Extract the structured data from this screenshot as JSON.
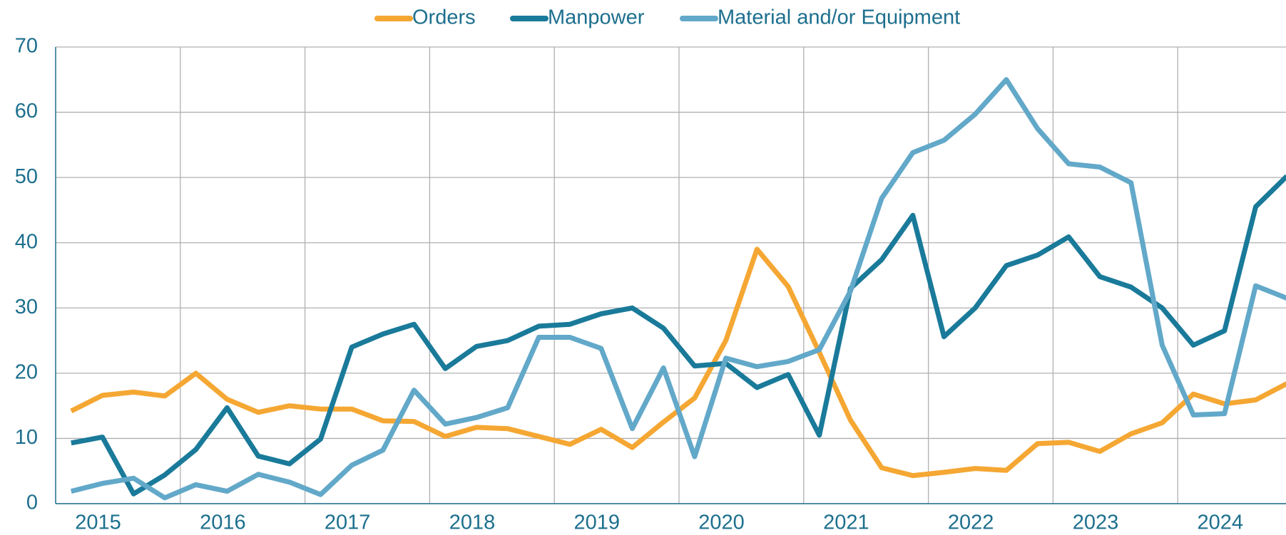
{
  "chart_data": {
    "type": "line",
    "categories": [
      null,
      "2015",
      null,
      null,
      null,
      "2016",
      null,
      null,
      null,
      "2017",
      null,
      null,
      null,
      "2018",
      null,
      null,
      null,
      "2019",
      null,
      null,
      null,
      "2020",
      null,
      null,
      null,
      "2021",
      null,
      null,
      null,
      "2022",
      null,
      null,
      null,
      "2023",
      null,
      null,
      null,
      "2024",
      null,
      null
    ],
    "series": [
      {
        "name": "Orders",
        "color": "#f5a733",
        "values": [
          14.2,
          16.6,
          17.1,
          16.5,
          20,
          16,
          14,
          15,
          14.5,
          14.5,
          12.7,
          12.6,
          10.3,
          11.7,
          11.5,
          10.3,
          9.1,
          11.4,
          8.6,
          12.5,
          16.2,
          25,
          39,
          33.3,
          23.2,
          12.8,
          5.5,
          4.3,
          4.8,
          5.4,
          5.1,
          9.2,
          9.4,
          8,
          10.7,
          12.4,
          16.8,
          15.3,
          15.9,
          18.4
        ]
      },
      {
        "name": "Manpower",
        "color": "#1a7a9a",
        "values": [
          9.3,
          10.2,
          1.5,
          4.4,
          8.3,
          14.7,
          7.3,
          6.1,
          9.9,
          24,
          26,
          27.5,
          20.7,
          24.1,
          25,
          27.2,
          27.5,
          29.1,
          30,
          26.9,
          21.1,
          21.5,
          17.8,
          19.8,
          10.5,
          33,
          37.4,
          44.2,
          25.6,
          30,
          36.5,
          38.1,
          40.9,
          34.8,
          33.2,
          30,
          24.3,
          26.5,
          45.5,
          50.2
        ]
      },
      {
        "name": "Material and/or Equipment",
        "color": "#62a8c9",
        "values": [
          1.9,
          3.1,
          3.9,
          0.9,
          2.9,
          1.9,
          4.5,
          3.3,
          1.4,
          5.9,
          8.2,
          17.4,
          12.2,
          13.2,
          14.7,
          25.5,
          25.5,
          23.8,
          11.5,
          20.8,
          7.2,
          22.3,
          21,
          21.8,
          23.6,
          32.6,
          46.8,
          53.8,
          55.7,
          59.7,
          65,
          57.5,
          52.1,
          51.6,
          49.2,
          24.3,
          13.6,
          13.8,
          33.4,
          31.5
        ]
      }
    ],
    "ylim": [
      0,
      70
    ],
    "yticks": [
      0,
      10,
      20,
      30,
      40,
      50,
      60,
      70
    ],
    "grid": true,
    "legend": "top"
  }
}
